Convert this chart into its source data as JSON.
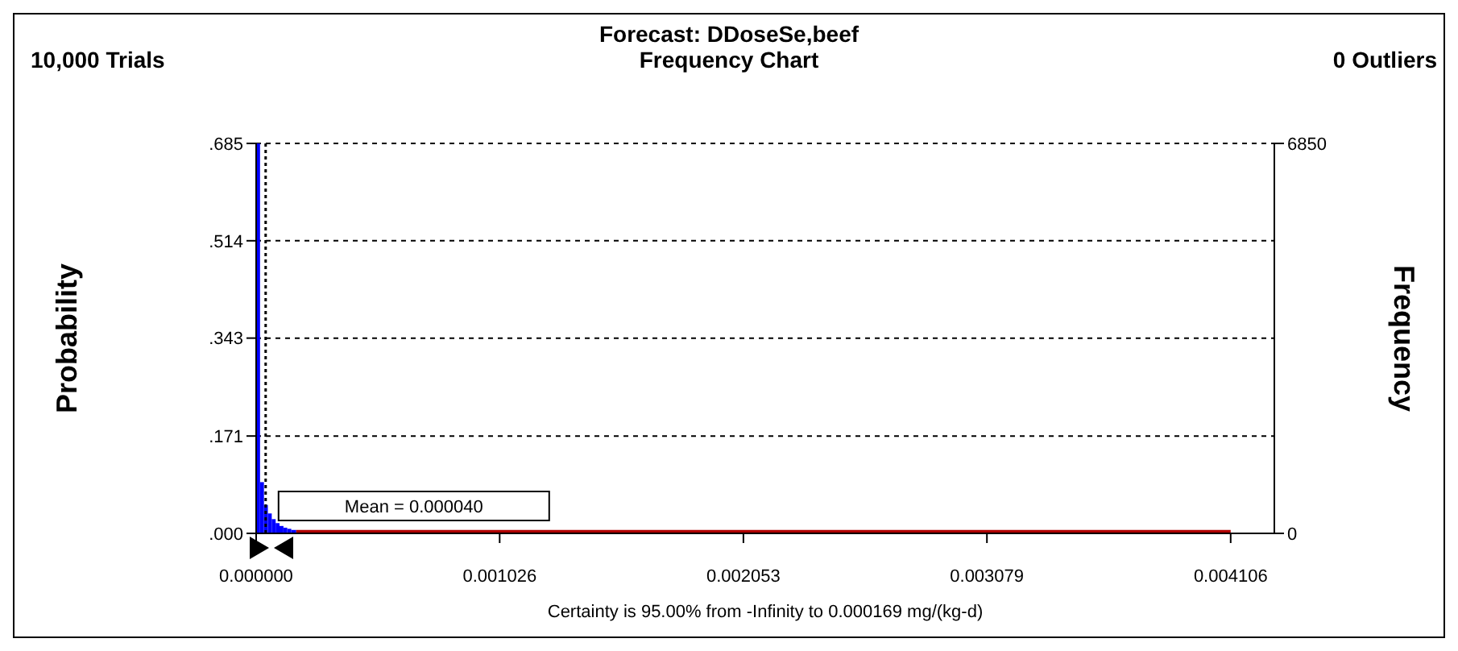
{
  "chart_data": {
    "type": "histogram",
    "title": "Forecast: DDoseSe,beef",
    "subtitle": "Frequency Chart",
    "annotations": [
      "10,000 Trials",
      "0 Outliers"
    ],
    "xlabel": "Certainty is 95.00% from -Infinity to 0.000169  mg/(kg-d)",
    "ylabel": "Probability",
    "y2label": "Frequency",
    "bins": [
      0,
      1.64e-05,
      3.28e-05,
      4.93e-05,
      6.57e-05,
      8.21e-05,
      9.85e-05,
      0.000115,
      0.000131,
      0.000148,
      0.000169,
      0.004106
    ],
    "values": [
      0.685,
      0.09,
      0.05,
      0.035,
      0.025,
      0.018,
      0.013,
      0.01,
      0.008,
      0.006,
      0.006
    ],
    "colors": [
      "#0000ff",
      "#0000ff",
      "#0000ff",
      "#0000ff",
      "#0000ff",
      "#0000ff",
      "#0000ff",
      "#0000ff",
      "#0000ff",
      "#0000ff",
      "#b00000"
    ],
    "xlim": [
      0,
      0.00429
    ],
    "xticks": [
      {
        "value": 0,
        "label": "0.000000"
      },
      0.001026,
      0.002053,
      0.003079,
      0.004106
    ],
    "ylim": [
      0,
      0.685
    ],
    "yticks": [
      {
        "value": 0,
        "label": ".000"
      },
      {
        "value": 0.171,
        "label": ".171"
      },
      {
        "value": 0.343,
        "label": ".343"
      },
      {
        "value": 0.514,
        "label": ".514"
      },
      {
        "value": 0.685,
        "label": ".685"
      }
    ],
    "y2lim": [
      0,
      6850
    ],
    "y2ticks": [
      0,
      6850
    ],
    "grid": "y",
    "ref_lines": [
      {
        "axis": "x",
        "value": 4e-05,
        "label": "Mean = 0.000040",
        "line_style": "dotted",
        "color": "#000000"
      }
    ]
  }
}
